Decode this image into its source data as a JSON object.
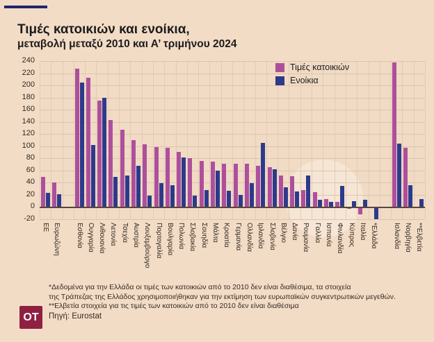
{
  "header": {
    "title": "Τιμές κατοικιών και ενοίκια,",
    "subtitle": "μεταβολή μεταξύ 2010 και Α’ τριμήνου 2024"
  },
  "legend": {
    "house_label": "Τιμές κατοικιών",
    "rent_label": "Ενοίκια"
  },
  "colors": {
    "house": "#ae4f9c",
    "rent": "#2d3a8c",
    "page_bg": "#f3dcc6",
    "grid": "#dcc5af",
    "zero_axis": "#55473c",
    "accent_line": "#20266e",
    "logo_bg": "#8e2042",
    "text": "#1c1c1c"
  },
  "chart_data": {
    "type": "bar",
    "title": "Τιμές κατοικιών και ενοίκια, μεταβολή μεταξύ 2010 και Α’ τριμήνου 2024",
    "ylim": [
      -20,
      240
    ],
    "yticks": [
      240,
      220,
      200,
      180,
      160,
      140,
      120,
      100,
      80,
      60,
      40,
      20,
      0,
      -20
    ],
    "grid": true,
    "legend_position": "top-right",
    "categories": [
      "ΕΕ",
      "Ευρωζώνη",
      "",
      "Εσθονία",
      "Ουγγαρία",
      "Λιθουανία",
      "Λετονία",
      "Τσεχία",
      "Αυστρία",
      "Λουξεμβούργο",
      "Πορτογαλία",
      "Βουλγαρία",
      "Πολωνία",
      "Σλοβακία",
      "Σουηδία",
      "Μάλτα",
      "Κροατία",
      "Γερμανία",
      "Ολλανδία",
      "Ιρλανδία",
      "Σλοβενία",
      "Βέλγιο",
      "Δανία",
      "Ρουμανία",
      "Γαλλία",
      "Ισπανία",
      "Φινλανδία",
      "Κύπρος",
      "Ιταλία",
      "*Ελλάδα",
      "",
      "Ισλανδία",
      "Νορβηγία",
      "**Ελβετία"
    ],
    "series": [
      {
        "name": "Τιμές κατοικιών",
        "color": "#ae4f9c",
        "values": [
          49,
          40,
          null,
          228,
          213,
          175,
          143,
          127,
          110,
          103,
          99,
          97,
          91,
          80,
          76,
          75,
          71,
          71,
          71,
          68,
          66,
          52,
          51,
          28,
          24,
          13,
          9,
          -3,
          -12,
          null,
          null,
          238,
          98,
          null
        ]
      },
      {
        "name": "Ενοίκια",
        "color": "#2d3a8c",
        "values": [
          23,
          21,
          null,
          205,
          102,
          179,
          50,
          52,
          68,
          19,
          39,
          36,
          82,
          19,
          28,
          60,
          27,
          20,
          39,
          105,
          62,
          32,
          26,
          52,
          12,
          8,
          35,
          10,
          12,
          -21,
          null,
          104,
          36,
          13
        ]
      }
    ]
  },
  "footnotes": [
    "*Δεδομένα για την Ελλάδα οι τιμές των κατοικιών από το 2010 δεν είναι διαθέσιμα, τα στοιχεία",
    "της Τράπεζας της Ελλάδος χρησιμοποιήθηκαν για την εκτίμηση των ευρωπαϊκών συγκεντρωτικών μεγεθών.",
    "**Ελβετία στοιχεία για τις τιμές των κατοικιών από το 2010 δεν είναι διαθέσιμα"
  ],
  "source": "Πηγή: Eurostat",
  "logo_text": "OT"
}
